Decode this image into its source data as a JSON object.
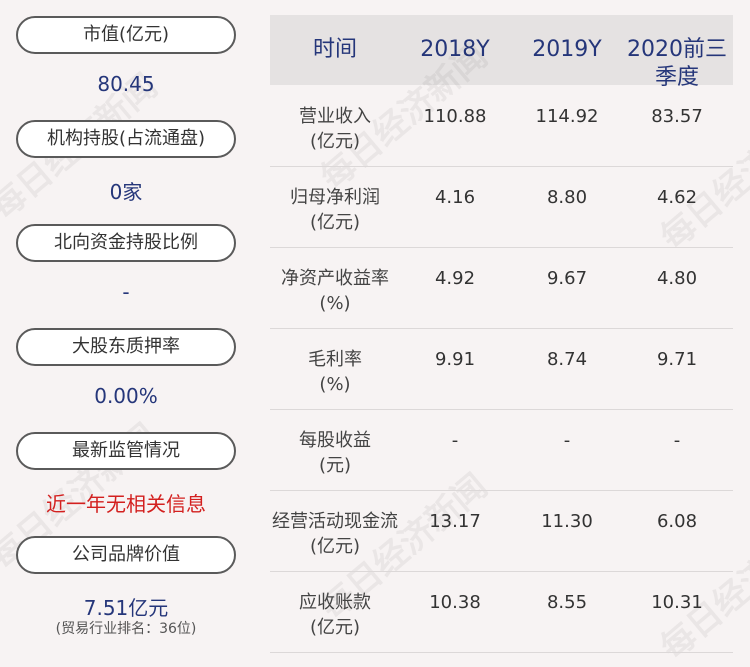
{
  "watermark": "每日经济新闻",
  "left_items": [
    {
      "label": "市值(亿元)",
      "value": "80.45"
    },
    {
      "label": "机构持股(占流通盘)",
      "value": "0家"
    },
    {
      "label": "北向资金持股比例",
      "value": "-"
    },
    {
      "label": "大股东质押率",
      "value": "0.00%"
    },
    {
      "label": "最新监管情况",
      "value": "近一年无相关信息"
    },
    {
      "label": "公司品牌价值",
      "value": "7.51亿元",
      "note": "(贸易行业排名：36位)"
    }
  ],
  "table": {
    "header": [
      "时间",
      "2018Y",
      "2019Y",
      "2020前三季度"
    ],
    "rows": [
      {
        "label": "营业收入",
        "unit": "(亿元)",
        "values": [
          "110.88",
          "114.92",
          "83.57"
        ]
      },
      {
        "label": "归母净利润",
        "unit": "(亿元)",
        "values": [
          "4.16",
          "8.80",
          "4.62"
        ]
      },
      {
        "label": "净资产收益率",
        "unit": "(%)",
        "values": [
          "4.92",
          "9.67",
          "4.80"
        ]
      },
      {
        "label": "毛利率",
        "unit": "(%)",
        "values": [
          "9.91",
          "8.74",
          "9.71"
        ]
      },
      {
        "label": "每股收益",
        "unit": "(元)",
        "values": [
          "-",
          "-",
          "-"
        ]
      },
      {
        "label": "经营活动现金流",
        "unit": "(亿元)",
        "values": [
          "13.17",
          "11.30",
          "6.08"
        ]
      },
      {
        "label": "应收账款",
        "unit": "(亿元)",
        "values": [
          "10.38",
          "8.55",
          "10.31"
        ]
      }
    ]
  }
}
